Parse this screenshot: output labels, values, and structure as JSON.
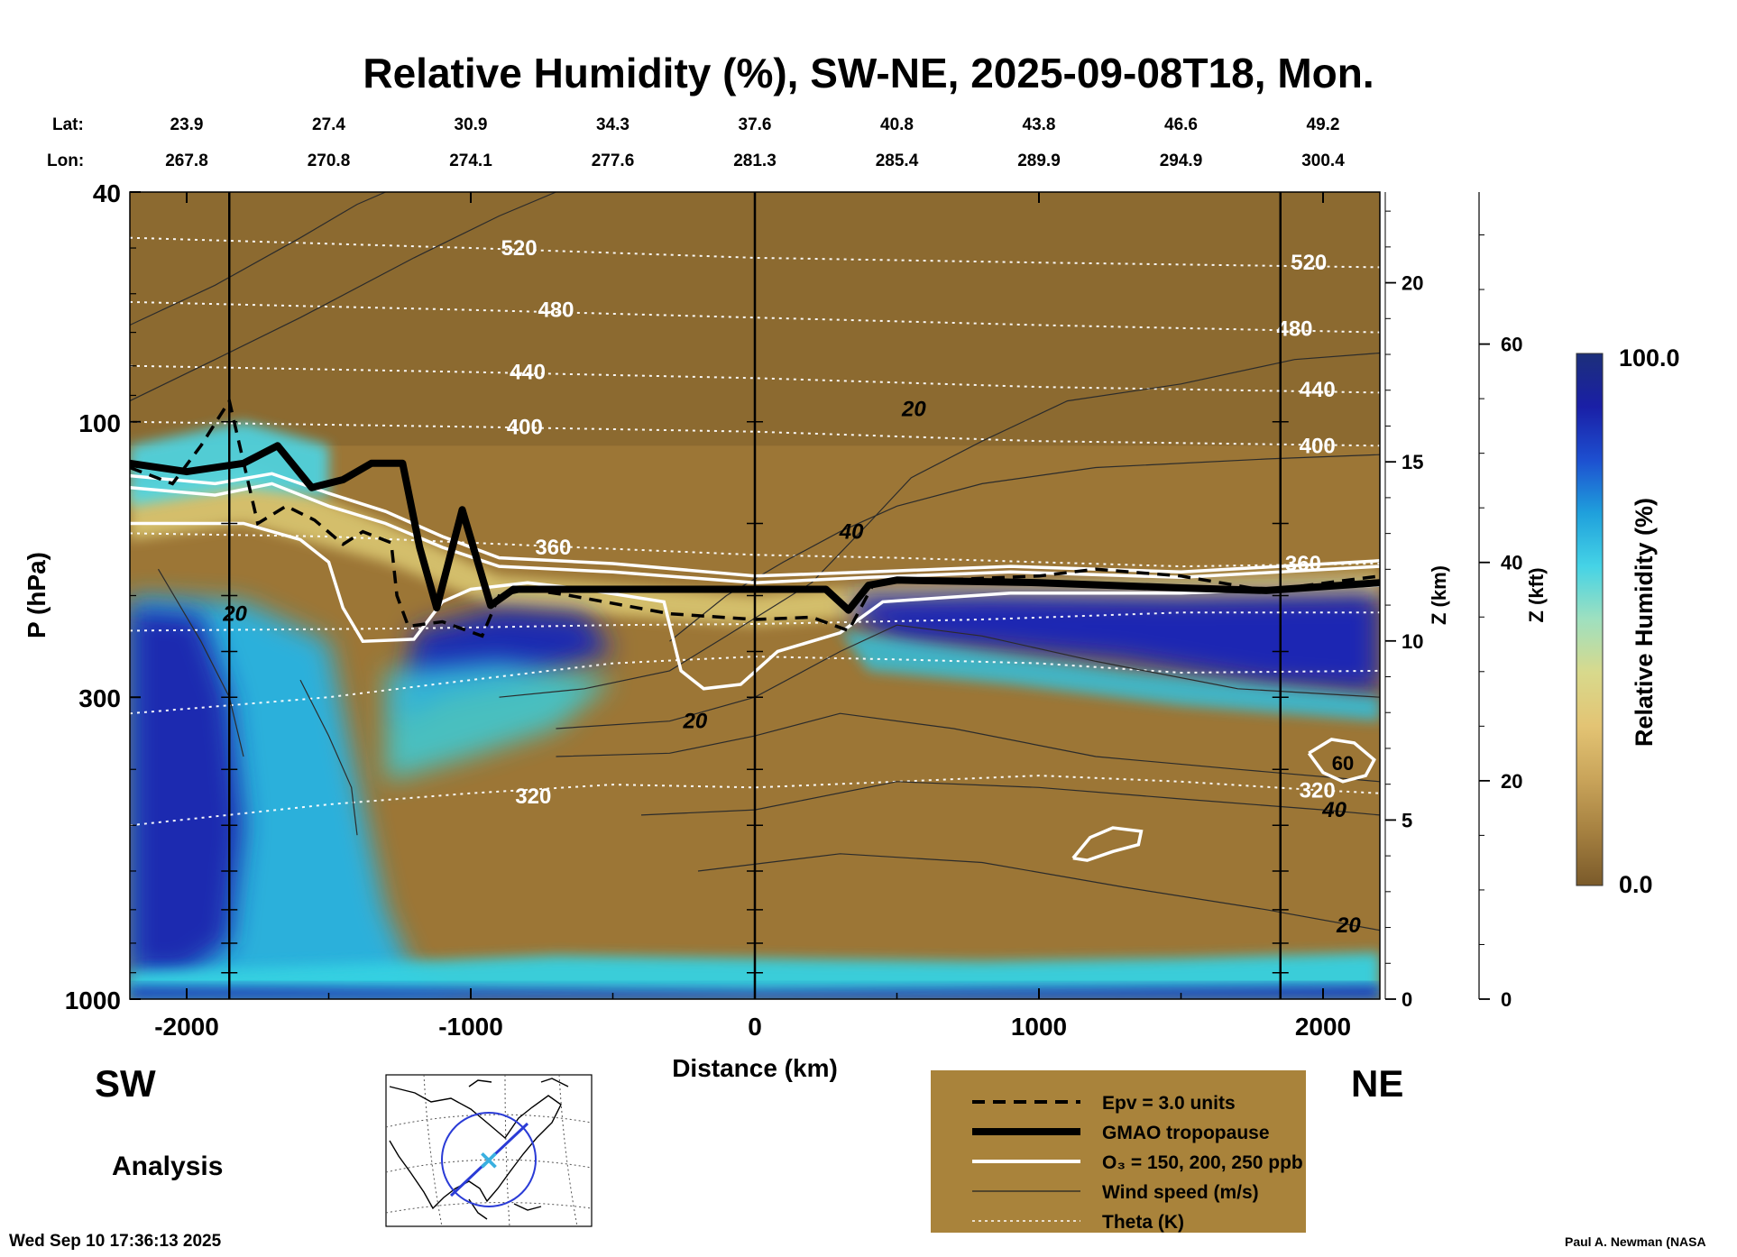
{
  "chart_data": {
    "type": "heatmap",
    "title": "Relative Humidity (%), SW-NE, 2025-09-08T18, Mon.",
    "xlabel": "Distance (km)",
    "ylabel": "P (hPa)",
    "y2label": "Z (km)",
    "y3label": "Z (kft)",
    "colorbar_label": "Relative Humidity (%)",
    "colorbar_range": [
      0.0,
      100.0
    ],
    "colorbar_tick_labels": [
      "0.0",
      "100.0"
    ],
    "colorbar_colors": [
      "#7a5a2a",
      "#a58040",
      "#c9a45a",
      "#e3c474",
      "#d8d98c",
      "#9fe0bf",
      "#45d3e6",
      "#1fa0dc",
      "#1d4fd0",
      "#1a1fa6",
      "#1c2f7a"
    ],
    "xlim": [
      -2200,
      2200
    ],
    "ylim": [
      1000,
      40
    ],
    "x_ticks": [
      -2000,
      -1000,
      0,
      1000,
      2000
    ],
    "x_tick_labels": [
      "-2000",
      "-1000",
      "0",
      "1000",
      "2000"
    ],
    "p_ticks": [
      40,
      100,
      300,
      1000
    ],
    "p_tick_labels": [
      "40",
      "100",
      "300",
      "1000"
    ],
    "z_ticks": [
      0,
      5,
      10,
      15,
      20
    ],
    "z_tick_labels": [
      "0",
      "5",
      "10",
      "15",
      "20"
    ],
    "kft_ticks": [
      0,
      20,
      40,
      60
    ],
    "kft_tick_labels": [
      "0",
      "20",
      "40",
      "60"
    ],
    "station_lines_km": [
      -1850,
      0,
      1850
    ],
    "lat_label": "Lat:",
    "lon_label": "Lon:",
    "latlon_points": [
      {
        "d": -2000,
        "lat": "23.9",
        "lon": "267.8"
      },
      {
        "d": -1500,
        "lat": "27.4",
        "lon": "270.8"
      },
      {
        "d": -1000,
        "lat": "30.9",
        "lon": "274.1"
      },
      {
        "d": -500,
        "lat": "34.3",
        "lon": "277.6"
      },
      {
        "d": 0,
        "lat": "37.6",
        "lon": "281.3"
      },
      {
        "d": 500,
        "lat": "40.8",
        "lon": "285.4"
      },
      {
        "d": 1000,
        "lat": "43.8",
        "lon": "289.9"
      },
      {
        "d": 1500,
        "lat": "46.6",
        "lon": "294.9"
      },
      {
        "d": 2000,
        "lat": "49.2",
        "lon": "300.4"
      }
    ],
    "tropopause_hpa": [
      [
        -2200,
        118
      ],
      [
        -2000,
        122
      ],
      [
        -1800,
        118
      ],
      [
        -1680,
        110
      ],
      [
        -1560,
        130
      ],
      [
        -1450,
        126
      ],
      [
        -1350,
        118
      ],
      [
        -1240,
        118
      ],
      [
        -1180,
        165
      ],
      [
        -1120,
        210
      ],
      [
        -1030,
        142
      ],
      [
        -930,
        208
      ],
      [
        -850,
        195
      ],
      [
        -500,
        195
      ],
      [
        0,
        195
      ],
      [
        250,
        195
      ],
      [
        330,
        212
      ],
      [
        400,
        192
      ],
      [
        500,
        188
      ],
      [
        1000,
        190
      ],
      [
        1500,
        194
      ],
      [
        1800,
        196
      ],
      [
        2200,
        190
      ]
    ],
    "epv_hpa": [
      [
        -2200,
        120
      ],
      [
        -2050,
        128
      ],
      [
        -1950,
        110
      ],
      [
        -1850,
        92
      ],
      [
        -1750,
        150
      ],
      [
        -1650,
        140
      ],
      [
        -1550,
        148
      ],
      [
        -1450,
        163
      ],
      [
        -1380,
        155
      ],
      [
        -1280,
        162
      ],
      [
        -1260,
        200
      ],
      [
        -1220,
        226
      ],
      [
        -1100,
        222
      ],
      [
        -960,
        235
      ],
      [
        -900,
        200
      ],
      [
        -800,
        195
      ],
      [
        -650,
        200
      ],
      [
        -300,
        215
      ],
      [
        0,
        220
      ],
      [
        200,
        218
      ],
      [
        330,
        230
      ],
      [
        420,
        190
      ],
      [
        1000,
        185
      ],
      [
        1200,
        180
      ],
      [
        1500,
        185
      ],
      [
        1800,
        196
      ],
      [
        2200,
        185
      ]
    ],
    "ozone_contours": [
      {
        "label": "150",
        "points": [
          [
            -2200,
            150
          ],
          [
            -1800,
            150
          ],
          [
            -1600,
            160
          ],
          [
            -1500,
            175
          ],
          [
            -1450,
            210
          ],
          [
            -1380,
            240
          ],
          [
            -1200,
            238
          ],
          [
            -1100,
            205
          ],
          [
            -1000,
            195
          ],
          [
            -800,
            190
          ],
          [
            -600,
            195
          ],
          [
            -320,
            205
          ],
          [
            -260,
            270
          ],
          [
            -180,
            290
          ],
          [
            -50,
            285
          ],
          [
            80,
            250
          ],
          [
            300,
            232
          ],
          [
            450,
            205
          ],
          [
            900,
            198
          ],
          [
            1500,
            198
          ],
          [
            2200,
            192
          ]
        ]
      },
      {
        "label": "200",
        "points": [
          [
            -2200,
            130
          ],
          [
            -1900,
            134
          ],
          [
            -1700,
            128
          ],
          [
            -1500,
            140
          ],
          [
            -1300,
            150
          ],
          [
            -1100,
            165
          ],
          [
            -900,
            178
          ],
          [
            -500,
            182
          ],
          [
            0,
            190
          ],
          [
            400,
            186
          ],
          [
            900,
            182
          ],
          [
            1500,
            186
          ],
          [
            2200,
            178
          ]
        ]
      },
      {
        "label": "250",
        "points": [
          [
            -2200,
            124
          ],
          [
            -1900,
            128
          ],
          [
            -1700,
            123
          ],
          [
            -1500,
            133
          ],
          [
            -1300,
            143
          ],
          [
            -1100,
            158
          ],
          [
            -900,
            172
          ],
          [
            -500,
            176
          ],
          [
            0,
            185
          ],
          [
            400,
            182
          ],
          [
            900,
            178
          ],
          [
            1500,
            182
          ],
          [
            2200,
            174
          ]
        ]
      }
    ],
    "ozone_small_contours": [
      {
        "label": "60",
        "points": [
          [
            1950,
            375
          ],
          [
            2030,
            355
          ],
          [
            2110,
            360
          ],
          [
            2180,
            385
          ],
          [
            2150,
            410
          ],
          [
            2070,
            420
          ],
          [
            2000,
            405
          ],
          [
            1950,
            375
          ]
        ]
      },
      {
        "label": "",
        "points": [
          [
            1120,
            570
          ],
          [
            1180,
            525
          ],
          [
            1260,
            505
          ],
          [
            1360,
            512
          ],
          [
            1350,
            540
          ],
          [
            1260,
            555
          ],
          [
            1170,
            575
          ],
          [
            1120,
            570
          ]
        ]
      }
    ],
    "theta_contours_hpa": [
      {
        "label": "320",
        "points": [
          [
            -2200,
            500
          ],
          [
            -1500,
            460
          ],
          [
            -1000,
            440
          ],
          [
            -500,
            425
          ],
          [
            0,
            430
          ],
          [
            500,
            420
          ],
          [
            1000,
            410
          ],
          [
            1500,
            420
          ],
          [
            2000,
            435
          ],
          [
            2200,
            440
          ]
        ]
      },
      {
        "label": "",
        "points": [
          [
            -2200,
            320
          ],
          [
            -1500,
            300
          ],
          [
            -1000,
            280
          ],
          [
            -500,
            262
          ],
          [
            0,
            255
          ],
          [
            500,
            258
          ],
          [
            1000,
            262
          ],
          [
            1500,
            272
          ],
          [
            2200,
            270
          ]
        ]
      },
      {
        "label": "",
        "points": [
          [
            -2200,
            230
          ],
          [
            -1200,
            228
          ],
          [
            -500,
            225
          ],
          [
            0,
            224
          ],
          [
            800,
            220
          ],
          [
            1500,
            214
          ],
          [
            2200,
            214
          ]
        ]
      },
      {
        "label": "360",
        "points": [
          [
            -2200,
            156
          ],
          [
            -1500,
            158
          ],
          [
            -1000,
            162
          ],
          [
            -500,
            166
          ],
          [
            0,
            170
          ],
          [
            500,
            172
          ],
          [
            1000,
            175
          ],
          [
            1500,
            178
          ],
          [
            2200,
            176
          ]
        ]
      },
      {
        "label": "400",
        "points": [
          [
            -2200,
            100
          ],
          [
            -1000,
            102
          ],
          [
            0,
            104
          ],
          [
            1000,
            108
          ],
          [
            2200,
            110
          ]
        ]
      },
      {
        "label": "440",
        "points": [
          [
            -2200,
            80
          ],
          [
            -1000,
            82
          ],
          [
            0,
            84
          ],
          [
            1000,
            87
          ],
          [
            2200,
            89
          ]
        ]
      },
      {
        "label": "480",
        "points": [
          [
            -2200,
            62
          ],
          [
            -1000,
            64
          ],
          [
            0,
            66
          ],
          [
            1000,
            68
          ],
          [
            2200,
            70
          ]
        ]
      },
      {
        "label": "520",
        "points": [
          [
            -2200,
            48
          ],
          [
            -1000,
            50
          ],
          [
            0,
            52
          ],
          [
            1000,
            53
          ],
          [
            2200,
            54
          ]
        ]
      }
    ],
    "theta_labels": [
      {
        "text": "520",
        "d": -830,
        "p": 50
      },
      {
        "text": "480",
        "d": -700,
        "p": 64
      },
      {
        "text": "440",
        "d": -800,
        "p": 82
      },
      {
        "text": "400",
        "d": -810,
        "p": 102
      },
      {
        "text": "360",
        "d": -710,
        "p": 165
      },
      {
        "text": "320",
        "d": -780,
        "p": 445
      },
      {
        "text": "520",
        "d": 1950,
        "p": 53
      },
      {
        "text": "480",
        "d": 1900,
        "p": 69
      },
      {
        "text": "440",
        "d": 1980,
        "p": 88
      },
      {
        "text": "400",
        "d": 1980,
        "p": 110
      },
      {
        "text": "360",
        "d": 1930,
        "p": 176
      },
      {
        "text": "320",
        "d": 1980,
        "p": 435
      }
    ],
    "wind_contours_hpa": [
      {
        "label": "20",
        "points": [
          [
            -2200,
            68
          ],
          [
            -1900,
            58
          ],
          [
            -1600,
            48
          ],
          [
            -1400,
            42
          ],
          [
            -1300,
            40
          ]
        ]
      },
      {
        "label": "",
        "points": [
          [
            -2200,
            92
          ],
          [
            -1900,
            78
          ],
          [
            -1600,
            66
          ],
          [
            -1200,
            52
          ],
          [
            -900,
            44
          ],
          [
            -700,
            40
          ]
        ]
      },
      {
        "label": "20",
        "points": [
          [
            -900,
            300
          ],
          [
            -600,
            290
          ],
          [
            -300,
            270
          ],
          [
            -100,
            235
          ],
          [
            200,
            190
          ],
          [
            400,
            150
          ],
          [
            550,
            125
          ],
          [
            800,
            108
          ],
          [
            1100,
            92
          ],
          [
            1500,
            86
          ],
          [
            1900,
            78
          ],
          [
            2200,
            76
          ]
        ]
      },
      {
        "label": "40",
        "points": [
          [
            -300,
            240
          ],
          [
            -100,
            200
          ],
          [
            100,
            175
          ],
          [
            300,
            155
          ],
          [
            500,
            140
          ],
          [
            800,
            128
          ],
          [
            1200,
            120
          ],
          [
            1800,
            116
          ],
          [
            2200,
            114
          ]
        ]
      },
      {
        "label": "",
        "points": [
          [
            -700,
            340
          ],
          [
            -300,
            330
          ],
          [
            0,
            300
          ],
          [
            300,
            250
          ],
          [
            500,
            225
          ],
          [
            800,
            235
          ],
          [
            1200,
            260
          ],
          [
            1700,
            290
          ],
          [
            2200,
            300
          ]
        ]
      },
      {
        "label": "20",
        "points": [
          [
            -700,
            380
          ],
          [
            -300,
            375
          ],
          [
            0,
            350
          ],
          [
            300,
            320
          ],
          [
            700,
            340
          ],
          [
            1200,
            380
          ],
          [
            1700,
            400
          ],
          [
            2200,
            420
          ]
        ]
      },
      {
        "label": "40",
        "points": [
          [
            -400,
            480
          ],
          [
            0,
            470
          ],
          [
            500,
            420
          ],
          [
            1000,
            430
          ],
          [
            1500,
            450
          ],
          [
            2000,
            470
          ],
          [
            2200,
            480
          ]
        ]
      },
      {
        "label": "20",
        "points": [
          [
            -200,
            600
          ],
          [
            300,
            560
          ],
          [
            800,
            580
          ],
          [
            1300,
            640
          ],
          [
            1800,
            700
          ],
          [
            2200,
            760
          ]
        ]
      },
      {
        "label": "20",
        "points": [
          [
            -2100,
            180
          ],
          [
            -1950,
            240
          ],
          [
            -1850,
            300
          ],
          [
            -1800,
            380
          ]
        ]
      },
      {
        "label": "",
        "points": [
          [
            -1600,
            280
          ],
          [
            -1500,
            350
          ],
          [
            -1420,
            430
          ],
          [
            -1400,
            520
          ]
        ]
      }
    ],
    "wind_labels": [
      {
        "text": "20",
        "d": 560,
        "p": 95
      },
      {
        "text": "40",
        "d": 340,
        "p": 155
      },
      {
        "text": "20",
        "d": -210,
        "p": 330
      },
      {
        "text": "40",
        "d": 2040,
        "p": 470
      },
      {
        "text": "20",
        "d": 2090,
        "p": 745
      },
      {
        "text": "20",
        "d": -1830,
        "p": 215
      }
    ],
    "legend": [
      {
        "style": "dashed",
        "label": "Epv = 3.0 units"
      },
      {
        "style": "thick",
        "label": "GMAO tropopause"
      },
      {
        "style": "white",
        "label": "O₃ = 150, 200, 250 ppb"
      },
      {
        "style": "thin",
        "label": "Wind speed (m/s)"
      },
      {
        "style": "dotted",
        "label": "Theta (K)"
      }
    ],
    "sw_label": "SW",
    "ne_label": "NE",
    "analysis_label": "Analysis",
    "timestamp": "Wed Sep 10 17:36:13 2025",
    "credit": "Paul A. Newman (NASA"
  }
}
